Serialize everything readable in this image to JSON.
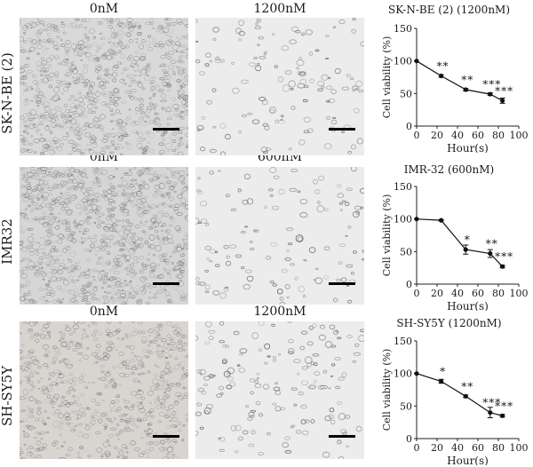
{
  "columns": [
    "0nM",
    "1200nM",
    "0nM",
    "600nM",
    "0nM",
    "1200nM"
  ],
  "rows": [
    {
      "cell_line": "SK-N-BE (2)",
      "control_label": "0nM",
      "treated_label": "1200nM",
      "tint": "#d9d9d9"
    },
    {
      "cell_line": "IMR32",
      "control_label": "0nM",
      "treated_label": "600nM",
      "tint": "#d6d6d6"
    },
    {
      "cell_line": "SH-SY5Y",
      "control_label": "0nM",
      "treated_label": "1200nM",
      "tint": "#d8d4d0"
    }
  ],
  "chart_data": [
    {
      "type": "line",
      "title": "SK-N-BE (2) (1200nM)",
      "xlabel": "Hour(s)",
      "ylabel": "Cell viability (%)",
      "xlim": [
        0,
        100
      ],
      "ylim": [
        0,
        150
      ],
      "xticks": [
        "0",
        "20",
        "40",
        "60",
        "80",
        "100"
      ],
      "yticks": [
        "0",
        "50",
        "100",
        "150"
      ],
      "x": [
        0,
        24,
        48,
        72,
        84
      ],
      "y": [
        100,
        77,
        56,
        49,
        39
      ],
      "err": [
        0,
        2,
        2,
        2,
        4
      ],
      "annotations": [
        "",
        "**",
        "**",
        "***",
        "***"
      ]
    },
    {
      "type": "line",
      "title": "IMR-32 (600nM)",
      "xlabel": "Hour(s)",
      "ylabel": "Cell viability (%)",
      "xlim": [
        0,
        100
      ],
      "ylim": [
        0,
        150
      ],
      "xticks": [
        "0",
        "20",
        "40",
        "60",
        "80",
        "100"
      ],
      "yticks": [
        "0",
        "50",
        "100",
        "150"
      ],
      "x": [
        0,
        24,
        48,
        72,
        84
      ],
      "y": [
        100,
        98,
        53,
        47,
        27
      ],
      "err": [
        0,
        1,
        7,
        6,
        2
      ],
      "annotations": [
        "",
        "",
        "*",
        "**",
        "***"
      ]
    },
    {
      "type": "line",
      "title": "SH-SY5Y (1200nM)",
      "xlabel": "Hour(s)",
      "ylabel": "Cell viability (%)",
      "xlim": [
        0,
        100
      ],
      "ylim": [
        0,
        150
      ],
      "xticks": [
        "0",
        "20",
        "40",
        "60",
        "80",
        "100"
      ],
      "yticks": [
        "0",
        "50",
        "100",
        "150"
      ],
      "x": [
        0,
        24,
        48,
        72,
        84
      ],
      "y": [
        100,
        88,
        65,
        40,
        35
      ],
      "err": [
        0,
        3,
        2,
        8,
        2
      ],
      "annotations": [
        "",
        "*",
        "**",
        "***",
        "***"
      ]
    }
  ]
}
